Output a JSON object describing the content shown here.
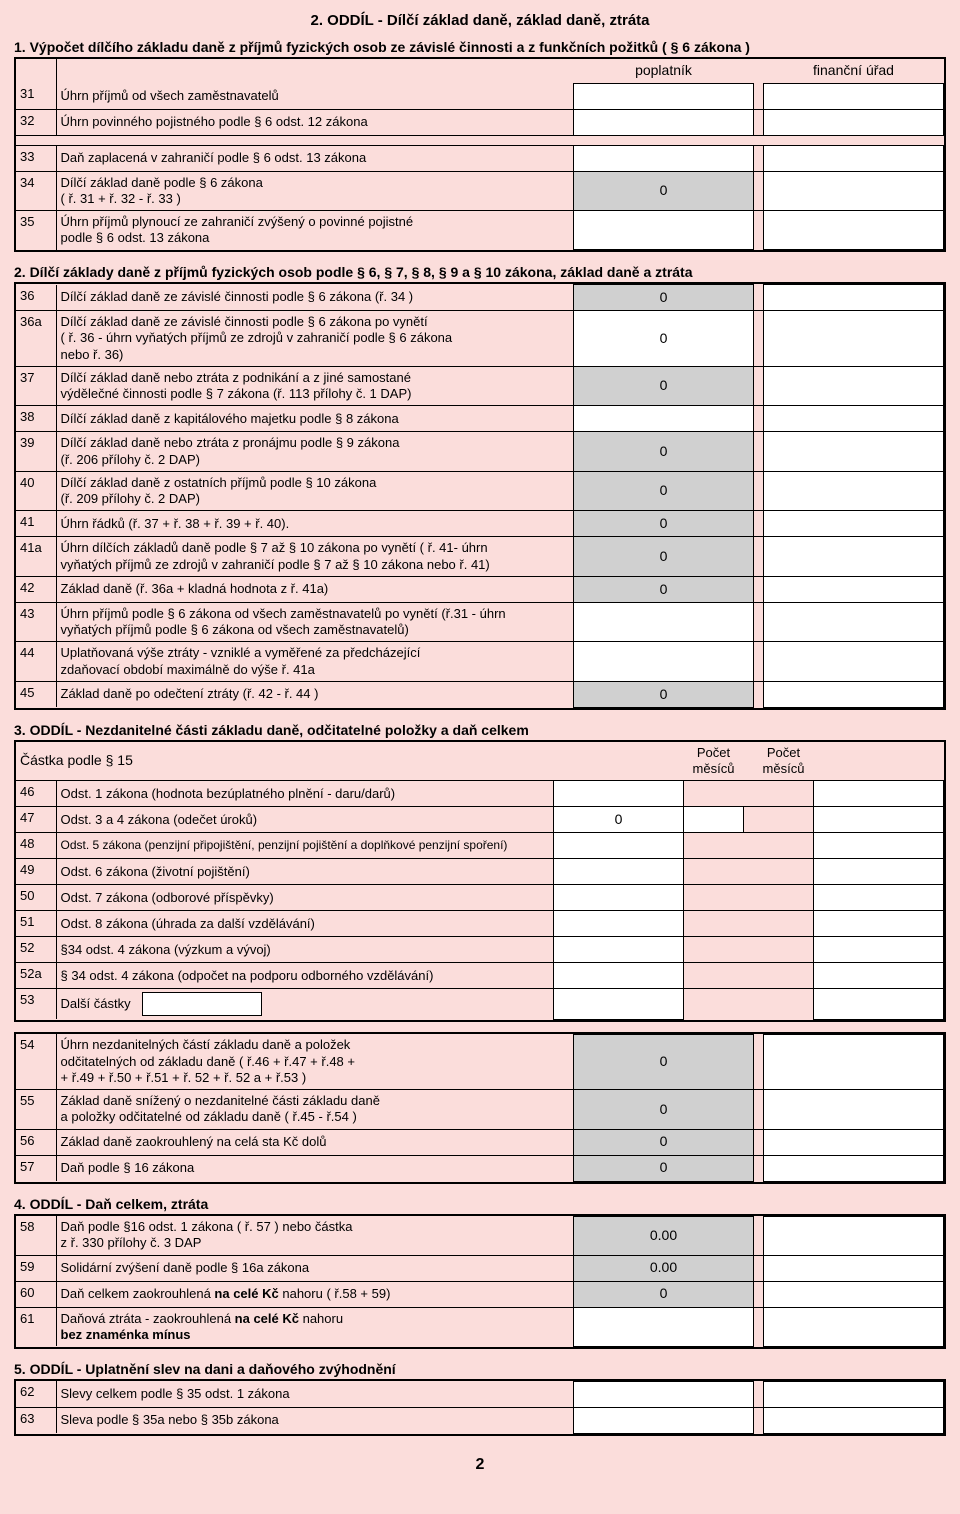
{
  "page_number": "2",
  "colors": {
    "bg": "#fbdddb",
    "cell_white": "#ffffff",
    "cell_gray": "#d0d0d0",
    "border": "#000000"
  },
  "title": "2. ODDÍL - Dílčí základ daně, základ daně, ztráta",
  "section1": {
    "heading": "1. Výpočet dílčího základu daně z příjmů fyzických osob ze závislé činnosti a z funkčních požitků ( § 6 zákona )",
    "col1": "poplatník",
    "col2": "finanční úřad",
    "rows": [
      {
        "num": "31",
        "label": "Úhrn příjmů od všech zaměstnavatelů",
        "v1": "",
        "v2": ""
      },
      {
        "num": "32",
        "label": "Úhrn povinného pojistného podle § 6 odst. 12 zákona",
        "v1": "",
        "v2": ""
      },
      {
        "num": "33",
        "label": "Daň zaplacená v zahraničí podle § 6 odst. 13 zákona",
        "v1": "",
        "v2": ""
      },
      {
        "num": "34",
        "label": "Dílčí základ daně podle § 6 zákona\n( ř. 31 + ř. 32 - ř. 33 )",
        "v1": "0",
        "v2": "",
        "gray": true
      },
      {
        "num": "35",
        "label": "Úhrn příjmů plynoucí ze zahraničí zvýšený o povinné pojistné\npodle § 6 odst. 13 zákona",
        "v1": "",
        "v2": ""
      }
    ]
  },
  "section2": {
    "heading": "2. Dílčí základy daně z příjmů fyzických osob podle § 6, § 7, § 8, § 9 a § 10 zákona, základ daně a ztráta",
    "rows": [
      {
        "num": "36",
        "label": "Dílčí základ daně ze závislé činnosti podle § 6 zákona (ř. 34 )",
        "v1": "0",
        "gray": true,
        "v2": ""
      },
      {
        "num": "36a",
        "label": "Dílčí základ daně ze závislé činnosti podle § 6 zákona po vynětí\n( ř. 36 - úhrn vyňatých příjmů ze zdrojů v zahraničí podle § 6 zákona\nnebo ř. 36)",
        "v1": "0",
        "v2": ""
      },
      {
        "num": "37",
        "label": "Dílčí základ daně nebo ztráta z podnikání a z jiné samostané\nvýdělečné činnosti podle § 7 zákona (ř. 113 přílohy č. 1 DAP)",
        "v1": "0",
        "gray": true,
        "v2": ""
      },
      {
        "num": "38",
        "label": "Dílčí základ daně z kapitálového majetku podle § 8 zákona",
        "v1": "",
        "v2": ""
      },
      {
        "num": "39",
        "label": "Dílčí základ daně nebo ztráta z pronájmu podle § 9 zákona\n(ř. 206 přílohy č. 2 DAP)",
        "v1": "0",
        "gray": true,
        "v2": ""
      },
      {
        "num": "40",
        "label": "Dílčí základ daně z ostatních příjmů podle § 10 zákona\n(ř. 209 přílohy č. 2 DAP)",
        "v1": "0",
        "gray": true,
        "v2": ""
      },
      {
        "num": "41",
        "label": "Úhrn řádků (ř. 37 + ř. 38 + ř. 39 + ř. 40).",
        "v1": "0",
        "gray": true,
        "v2": ""
      },
      {
        "num": "41a",
        "label": "Úhrn dílčích základů daně podle § 7 až § 10 zákona po vynětí ( ř. 41- úhrn\nvyňatých příjmů ze zdrojů v zahraničí podle § 7 až § 10 zákona nebo ř. 41)",
        "v1": "0",
        "gray": true,
        "v2": ""
      },
      {
        "num": "42",
        "label": "Základ daně (ř. 36a + kladná hodnota z ř. 41a)",
        "v1": "0",
        "gray": true,
        "v2": ""
      },
      {
        "num": "43",
        "label": "Úhrn příjmů podle § 6 zákona od všech zaměstnavatelů po vynětí (ř.31 - úhrn\nvyňatých příjmů podle § 6 zákona od všech zaměstnavatelů)",
        "v1": "",
        "v2": ""
      },
      {
        "num": "44",
        "label": "Uplatňovaná výše ztráty - vzniklé a vyměřené za předcházející\nzdaňovací období maximálně do výše ř. 41a",
        "v1": "",
        "v2": ""
      },
      {
        "num": "45",
        "label": "Základ daně po odečtení ztráty (ř. 42 - ř. 44 )",
        "v1": "0",
        "gray": true,
        "v2": ""
      }
    ]
  },
  "section3": {
    "heading": "3. ODDÍL - Nezdanitelné části základu daně, odčitatelné položky a daň celkem",
    "header_label": "Částka podle § 15",
    "header_mesicu": "Počet\nměsíců",
    "rows": [
      {
        "num": "46",
        "label": "Odst. 1 zákona (hodnota bezúplatného plnění - daru/darů)",
        "v1": "",
        "m": "",
        "hide_m": true,
        "v2": ""
      },
      {
        "num": "47",
        "label": "Odst. 3 a 4 zákona (odečet úroků)",
        "v1": "0",
        "m": "",
        "v2": ""
      },
      {
        "num": "48",
        "label": "Odst. 5 zákona (penzijní připojištění, penzijní pojištění a doplňkové penzijní spoření)",
        "v1": "",
        "m": "",
        "hide_m": true,
        "v2": "",
        "small": true
      },
      {
        "num": "49",
        "label": "Odst. 6 zákona (životní pojištění)",
        "v1": "",
        "m": "",
        "hide_m": true,
        "v2": ""
      },
      {
        "num": "50",
        "label": "Odst. 7 zákona (odborové příspěvky)",
        "v1": "",
        "m": "",
        "hide_m": true,
        "v2": ""
      },
      {
        "num": "51",
        "label": "Odst. 8 zákona (úhrada za další vzdělávání)",
        "v1": "",
        "m": "",
        "hide_m": true,
        "v2": ""
      },
      {
        "num": "52",
        "label": "§34 odst. 4 zákona (výzkum a vývoj)",
        "v1": "",
        "m": "",
        "hide_m": true,
        "v2": ""
      },
      {
        "num": "52a",
        "label": "§ 34 odst. 4 zákona (odpočet na podporu odborného vzdělávání)",
        "v1": "",
        "m": "",
        "hide_m": true,
        "v2": ""
      },
      {
        "num": "53",
        "label": "Další částky",
        "v1": "",
        "m": "",
        "hide_m": true,
        "v2": "",
        "special": true
      }
    ],
    "rows2": [
      {
        "num": "54",
        "label": "Úhrn nezdanitelných částí základu daně a položek\nodčitatelných od základu daně ( ř.46 + ř.47 + ř.48 +\n+ ř.49 + ř.50 + ř.51 + ř. 52 + ř. 52 a + ř.53   )",
        "v1": "0",
        "gray": true,
        "v2": ""
      },
      {
        "num": "55",
        "label": "Základ daně snížený o nezdanitelné části základu daně\na položky odčitatelné od základu daně ( ř.45 - ř.54 )",
        "v1": "0",
        "gray": true,
        "v2": ""
      },
      {
        "num": "56",
        "label": "Základ daně zaokrouhlený na celá sta Kč dolů",
        "v1": "0",
        "gray": true,
        "v2": ""
      },
      {
        "num": "57",
        "label": "Daň podle § 16 zákona",
        "v1": "0",
        "gray": true,
        "v2": ""
      }
    ]
  },
  "section4": {
    "heading": "4. ODDÍL - Daň celkem, ztráta",
    "rows": [
      {
        "num": "58",
        "label": "Daň podle §16 odst. 1 zákona ( ř. 57 ) nebo částka\nz ř. 330 přílohy č. 3 DAP",
        "v1": "0.00",
        "gray": true,
        "v2": ""
      },
      {
        "num": "59",
        "label": "Solidární zvýšení daně podle § 16a zákona",
        "v1": "0.00",
        "gray": true,
        "v2": ""
      },
      {
        "num": "60",
        "label_html": "Daň celkem zaokrouhlená <b>na celé Kč</b> nahoru ( ř.58 + 59)",
        "v1": "0",
        "gray": true,
        "v2": ""
      },
      {
        "num": "61",
        "label_html": "Daňová ztráta - zaokrouhlená <b>na celé Kč</b> nahoru<br><b>bez znaménka mínus</b>",
        "v1": "",
        "v2": ""
      }
    ]
  },
  "section5": {
    "heading": "5. ODDÍL - Uplatnění slev na dani a daňového zvýhodnění",
    "rows": [
      {
        "num": "62",
        "label": "Slevy celkem podle § 35 odst. 1 zákona",
        "v1": "",
        "v2": ""
      },
      {
        "num": "63",
        "label": "Sleva podle § 35a nebo § 35b zákona",
        "v1": "",
        "v2": ""
      }
    ]
  }
}
